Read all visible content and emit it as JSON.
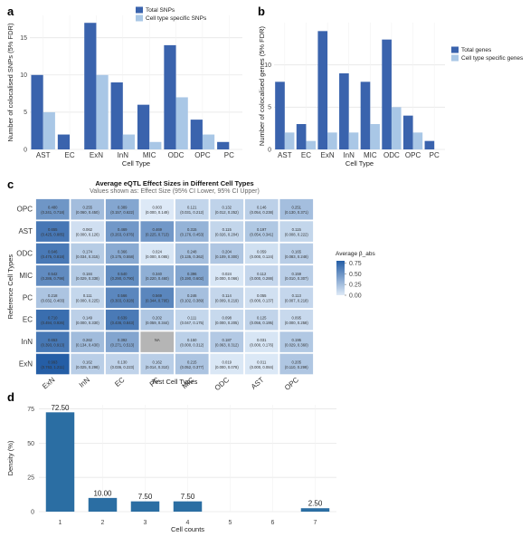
{
  "colors": {
    "dark_blue": "#3a63ad",
    "light_blue": "#a9c7e6",
    "density_bar": "#2b6ea3",
    "grid": "#e6e6e6",
    "na_cell": "#b5b5b5"
  },
  "chart_data": [
    {
      "panel": "a",
      "type": "bar",
      "categories": [
        "AST",
        "EC",
        "ExN",
        "InN",
        "MIC",
        "ODC",
        "OPC",
        "PC"
      ],
      "series": [
        {
          "name": "Total SNPs",
          "values": [
            10,
            2,
            17,
            9,
            6,
            14,
            4,
            1
          ]
        },
        {
          "name": "Cell type specific SNPs",
          "values": [
            5,
            0,
            10,
            2,
            1,
            7,
            2,
            0
          ]
        }
      ],
      "xlabel": "Cell Type",
      "ylabel": "Number of colocalised SNPs (5% FDR)",
      "ylim": [
        0,
        18
      ],
      "yticks": [
        "0",
        "5",
        "10",
        "15"
      ],
      "legend_position": "top"
    },
    {
      "panel": "b",
      "type": "bar",
      "categories": [
        "AST",
        "EC",
        "ExN",
        "InN",
        "MIC",
        "ODC",
        "OPC",
        "PC"
      ],
      "series": [
        {
          "name": "Total genes",
          "values": [
            8,
            3,
            14,
            9,
            8,
            13,
            4,
            1
          ]
        },
        {
          "name": "Cell type specific genes",
          "values": [
            2,
            1,
            2,
            2,
            3,
            5,
            2,
            0
          ]
        }
      ],
      "xlabel": "Cell Type",
      "ylabel": "Number of colocalised genes (5% FDR)",
      "ylim": [
        0,
        15
      ],
      "yticks": [
        "0",
        "5",
        "10"
      ],
      "legend_position": "right"
    },
    {
      "panel": "c",
      "type": "heatmap",
      "title": "Average eQTL Effect Sizes in Different Cell Types",
      "subtitle": "Values shown as: Effect Size (95% CI Lower, 95% CI Upper)",
      "xlabel": "Test Cell Types",
      "ylabel": "Reference Cell Types",
      "x_categories": [
        "ExN",
        "InN",
        "EC",
        "PC",
        "MIC",
        "ODC",
        "AST",
        "OPC"
      ],
      "y_categories": [
        "OPC",
        "AST",
        "ODC",
        "MIC",
        "PC",
        "EC",
        "InN",
        "ExN"
      ],
      "legend_title": "Average β_abs",
      "legend_ticks": [
        "0.75",
        "0.50",
        "0.25",
        "0.00"
      ],
      "legend_range": [
        0,
        0.8
      ],
      "rows": [
        [
          {
            "v": 0.48,
            "effect": "0.480",
            "ci": "(0.241, 0.718)"
          },
          {
            "v": 0.255,
            "effect": "0.255",
            "ci": "(0.060, 0.450)"
          },
          {
            "v": 0.389,
            "effect": "0.389",
            "ci": "(0.157, 0.622)"
          },
          {
            "v": 0.003,
            "effect": "0.003",
            "ci": "(0.000, 0.149)"
          },
          {
            "v": 0.121,
            "effect": "0.121",
            "ci": "(0.031, 0.212)"
          },
          {
            "v": 0.132,
            "effect": "0.132",
            "ci": "(0.012, 0.252)"
          },
          {
            "v": 0.146,
            "effect": "0.146",
            "ci": "(0.054, 0.238)"
          },
          {
            "v": 0.251,
            "effect": "0.251",
            "ci": "(0.130, 0.371)"
          }
        ],
        [
          {
            "v": 0.655,
            "effect": "0.655",
            "ci": "(0.425, 0.885)"
          },
          {
            "v": 0.062,
            "effect": "0.062",
            "ci": "(0.000, 0.126)"
          },
          {
            "v": 0.469,
            "effect": "0.469",
            "ci": "(0.263, 0.676)"
          },
          {
            "v": 0.469,
            "effect": "0.469",
            "ci": "(0.225, 0.713)"
          },
          {
            "v": 0.315,
            "effect": "0.315",
            "ci": "(0.176, 0.453)"
          },
          {
            "v": 0.115,
            "effect": "0.115",
            "ci": "(0.026, 0.204)"
          },
          {
            "v": 0.197,
            "effect": "0.197",
            "ci": "(0.054, 0.341)"
          },
          {
            "v": 0.115,
            "effect": "0.115",
            "ci": "(0.008, 0.222)"
          }
        ],
        [
          {
            "v": 0.646,
            "effect": "0.646",
            "ci": "(0.475, 0.818)"
          },
          {
            "v": 0.174,
            "effect": "0.174",
            "ci": "(0.034, 0.315)"
          },
          {
            "v": 0.366,
            "effect": "0.366",
            "ci": "(0.175, 0.558)"
          },
          {
            "v": 0.024,
            "effect": "0.024",
            "ci": "(0.000, 0.085)"
          },
          {
            "v": 0.248,
            "effect": "0.248",
            "ci": "(0.135, 0.362)"
          },
          {
            "v": 0.204,
            "effect": "0.204",
            "ci": "(0.109, 0.300)"
          },
          {
            "v": 0.059,
            "effect": "0.059",
            "ci": "(0.000, 0.124)"
          },
          {
            "v": 0.165,
            "effect": "0.165",
            "ci": "(0.083, 0.248)"
          }
        ],
        [
          {
            "v": 0.542,
            "effect": "0.542",
            "ci": "(0.286, 0.798)"
          },
          {
            "v": 0.184,
            "effect": "0.184",
            "ci": "(0.029, 0.338)"
          },
          {
            "v": 0.54,
            "effect": "0.540",
            "ci": "(0.290, 0.790)"
          },
          {
            "v": 0.34,
            "effect": "0.340",
            "ci": "(0.220, 0.460)"
          },
          {
            "v": 0.396,
            "effect": "0.396",
            "ci": "(0.190, 0.602)"
          },
          {
            "v": 0.024,
            "effect": "0.024",
            "ci": "(0.000, 0.066)"
          },
          {
            "v": 0.112,
            "effect": "0.112",
            "ci": "(0.000, 0.288)"
          },
          {
            "v": 0.159,
            "effect": "0.159",
            "ci": "(0.010, 0.307)"
          }
        ],
        [
          {
            "v": 0.218,
            "effect": "0.218",
            "ci": "(0.032, 0.403)"
          },
          {
            "v": 0.111,
            "effect": "0.111",
            "ci": "(0.000, 0.225)"
          },
          {
            "v": 0.566,
            "effect": "0.566",
            "ci": "(0.303, 0.828)"
          },
          {
            "v": 0.569,
            "effect": "0.569",
            "ci": "(0.344, 0.795)"
          },
          {
            "v": 0.246,
            "effect": "0.246",
            "ci": "(0.102, 0.389)"
          },
          {
            "v": 0.114,
            "effect": "0.114",
            "ci": "(0.009, 0.219)"
          },
          {
            "v": 0.055,
            "effect": "0.055",
            "ci": "(0.000, 0.137)"
          },
          {
            "v": 0.113,
            "effect": "0.113",
            "ci": "(0.007, 0.218)"
          }
        ],
        [
          {
            "v": 0.71,
            "effect": "0.710",
            "ci": "(0.494, 0.926)"
          },
          {
            "v": 0.149,
            "effect": "0.149",
            "ci": "(0.000, 0.330)"
          },
          {
            "v": 0.639,
            "effect": "0.639",
            "ci": "(0.436, 0.843)"
          },
          {
            "v": 0.202,
            "effect": "0.202",
            "ci": "(0.059, 0.344)"
          },
          {
            "v": 0.111,
            "effect": "0.111",
            "ci": "(0.047, 0.175)"
          },
          {
            "v": 0.098,
            "effect": "0.098",
            "ci": "(0.000, 0.205)"
          },
          {
            "v": 0.125,
            "effect": "0.125",
            "ci": "(0.056, 0.195)"
          },
          {
            "v": 0.095,
            "effect": "0.095",
            "ci": "(0.000, 0.258)"
          }
        ],
        [
          {
            "v": 0.653,
            "effect": "0.653",
            "ci": "(0.393, 0.913)"
          },
          {
            "v": 0.262,
            "effect": "0.262",
            "ci": "(0.134, 0.430)"
          },
          {
            "v": 0.392,
            "effect": "0.392",
            "ci": "(0.271, 0.513)"
          },
          {
            "v": null,
            "effect": "NA",
            "ci": ""
          },
          {
            "v": 0.15,
            "effect": "0.150",
            "ci": "(0.000, 0.312)"
          },
          {
            "v": 0.187,
            "effect": "0.187",
            "ci": "(0.063, 0.312)"
          },
          {
            "v": 0.031,
            "effect": "0.031",
            "ci": "(0.000, 0.176)"
          },
          {
            "v": 0.195,
            "effect": "0.195",
            "ci": "(0.029, 0.360)"
          }
        ],
        [
          {
            "v": 0.993,
            "effect": "0.993",
            "ci": "(0.763, 1.211)"
          },
          {
            "v": 0.162,
            "effect": "0.162",
            "ci": "(0.025, 0.298)"
          },
          {
            "v": 0.13,
            "effect": "0.130",
            "ci": "(0.036, 0.223)"
          },
          {
            "v": 0.162,
            "effect": "0.162",
            "ci": "(0.014, 0.310)"
          },
          {
            "v": 0.215,
            "effect": "0.215",
            "ci": "(0.052, 0.377)"
          },
          {
            "v": 0.019,
            "effect": "0.019",
            "ci": "(0.000, 0.078)"
          },
          {
            "v": 0.011,
            "effect": "0.011",
            "ci": "(0.000, 0.084)"
          },
          {
            "v": 0.205,
            "effect": "0.205",
            "ci": "(0.110, 0.299)"
          }
        ]
      ]
    },
    {
      "panel": "d",
      "type": "bar",
      "categories": [
        "1",
        "2",
        "3",
        "4",
        "5",
        "6",
        "7"
      ],
      "values": [
        72.5,
        10.0,
        7.5,
        7.5,
        0,
        0,
        2.5
      ],
      "data_labels": [
        "72.50",
        "10.00",
        "7.50",
        "7.50",
        "",
        "",
        "2.50"
      ],
      "xlabel": "Cell counts",
      "ylabel": "Density (%)",
      "ylim": [
        0,
        78
      ],
      "yticks": [
        "0",
        "25",
        "50",
        "75"
      ]
    }
  ]
}
